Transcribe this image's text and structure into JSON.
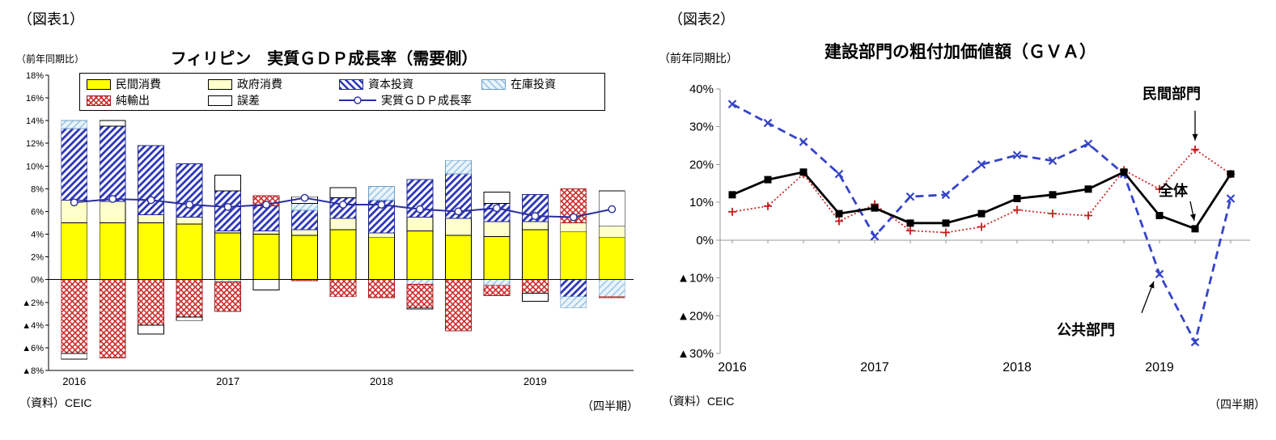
{
  "figure1": {
    "fig_label": "（図表1）",
    "source": "（資料）CEIC"
  },
  "figure2": {
    "fig_label": "（図表2）",
    "source": "（資料）CEIC"
  },
  "chart_data": [
    {
      "type": "bar",
      "subtype": "stacked-contribution-bars-with-line",
      "title": "フィリピン　実質ＧＤＰ成長率（需要側）",
      "ylabel": "（前年同期比）",
      "x_note": "（四半期）",
      "quarters": [
        "2016Q1",
        "2016Q2",
        "2016Q3",
        "2016Q4",
        "2017Q1",
        "2017Q2",
        "2017Q3",
        "2017Q4",
        "2018Q1",
        "2018Q2",
        "2018Q3",
        "2018Q4",
        "2019Q1",
        "2019Q2",
        "2019Q3"
      ],
      "year_labels": [
        "2016",
        "2017",
        "2018",
        "2019"
      ],
      "year_start_indices": [
        0,
        4,
        8,
        12
      ],
      "ylim": [
        -8,
        18
      ],
      "ytick_step": 2,
      "grid": false,
      "series": [
        {
          "name": "民間消費",
          "pattern": "solid",
          "color": "#ffff00",
          "border": "#000000",
          "values": [
            5.0,
            5.0,
            5.0,
            4.9,
            4.1,
            4.0,
            3.9,
            4.4,
            3.7,
            4.3,
            3.9,
            3.8,
            4.4,
            4.2,
            3.7
          ]
        },
        {
          "name": "政府消費",
          "pattern": "solid",
          "color": "#ffffcc",
          "border": "#000000",
          "values": [
            2.0,
            1.9,
            0.7,
            0.6,
            0.2,
            0.3,
            0.5,
            1.0,
            0.4,
            1.2,
            1.5,
            1.3,
            0.7,
            0.8,
            1.0
          ]
        },
        {
          "name": "資本投資",
          "pattern": "hatch-blue",
          "color": "#2b35b8",
          "border": "#20288f",
          "values": [
            6.3,
            6.6,
            6.1,
            4.7,
            3.5,
            2.2,
            1.7,
            1.8,
            2.9,
            3.3,
            3.9,
            1.6,
            2.4,
            -1.5,
            0.0
          ]
        },
        {
          "name": "在庫投資",
          "pattern": "hatch-lightblue",
          "color": "#9cc7e6",
          "border": "#6f9fc4",
          "values": [
            0.7,
            0.0,
            0.0,
            0.0,
            -0.2,
            0.0,
            0.6,
            0.0,
            1.2,
            -0.4,
            1.2,
            -0.5,
            0.0,
            -1.0,
            -1.5
          ]
        },
        {
          "name": "純輸出",
          "pattern": "crosshatch-red",
          "color": "#cc2b2b",
          "border": "#a02020",
          "values": [
            -6.5,
            -6.9,
            -4.0,
            -3.3,
            -2.6,
            0.9,
            -0.1,
            -1.5,
            -1.6,
            -2.1,
            -4.5,
            -0.9,
            -1.2,
            3.0,
            -0.1
          ]
        },
        {
          "name": "誤差",
          "pattern": "solid",
          "color": "#ffffff",
          "border": "#000000",
          "values": [
            -0.5,
            0.5,
            -0.8,
            -0.3,
            1.4,
            -0.9,
            0.6,
            0.9,
            0.0,
            -0.1,
            0.0,
            1.0,
            -0.7,
            0.0,
            3.1
          ]
        }
      ],
      "line": {
        "name": "実質ＧＤＰ成長率",
        "color": "#2b2f9e",
        "marker": "open-circle",
        "values": [
          6.8,
          7.1,
          7.0,
          6.6,
          6.4,
          6.6,
          7.2,
          6.6,
          6.6,
          6.2,
          6.0,
          6.3,
          5.6,
          5.5,
          6.2
        ]
      }
    },
    {
      "type": "line",
      "title": "建設部門の粗付加価値額（ＧＶＡ）",
      "ylabel": "（前年同期比）",
      "x_note": "（四半期）",
      "quarters": [
        "2016Q1",
        "2016Q2",
        "2016Q3",
        "2016Q4",
        "2017Q1",
        "2017Q2",
        "2017Q3",
        "2017Q4",
        "2018Q1",
        "2018Q2",
        "2018Q3",
        "2018Q4",
        "2019Q1",
        "2019Q2",
        "2019Q3"
      ],
      "year_labels": [
        "2016",
        "2017",
        "2018",
        "2019"
      ],
      "year_start_indices": [
        0,
        4,
        8,
        12
      ],
      "ylim": [
        -30,
        40
      ],
      "ytick_step": 10,
      "grid": false,
      "series": [
        {
          "name": "全体",
          "color": "#000000",
          "dash": "solid",
          "marker": "square",
          "values": [
            12,
            16,
            18,
            7,
            8.5,
            4.5,
            4.5,
            7,
            11,
            12,
            13.5,
            18,
            6.5,
            3,
            17.5
          ]
        },
        {
          "name": "民間部門",
          "color": "#c81e1e",
          "dash": "dotted",
          "marker": "plus",
          "values": [
            7.5,
            9,
            17.5,
            5,
            9.5,
            2.5,
            2,
            3.5,
            8,
            7,
            6.5,
            18.5,
            13.5,
            24,
            17.5
          ]
        },
        {
          "name": "公共部門",
          "color": "#3544c8",
          "dash": "dashed",
          "marker": "x",
          "values": [
            36,
            31,
            26,
            17.5,
            1,
            11.5,
            12,
            20,
            22.5,
            21,
            25.5,
            17.5,
            -9,
            -27,
            11
          ]
        }
      ],
      "annotations": [
        {
          "text": "民間部門",
          "series": 1,
          "index": 13
        },
        {
          "text": "全体",
          "series": 0,
          "index": 13
        },
        {
          "text": "公共部門",
          "series": 2,
          "index": 12
        }
      ]
    }
  ]
}
